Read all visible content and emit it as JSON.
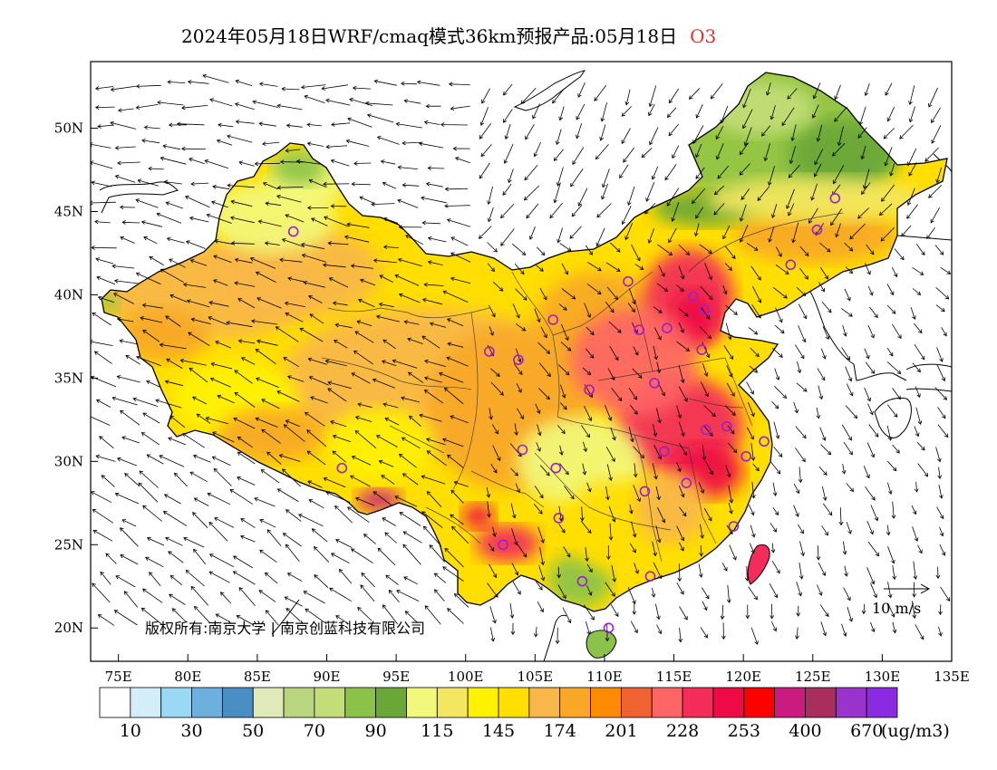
{
  "title": {
    "text": "2024年05月18日WRF/cmaq模式36km预报产品:05月18日",
    "species": "O3"
  },
  "map": {
    "projection": "lat-lon",
    "lon_range": [
      73,
      135
    ],
    "lat_range": [
      18,
      54
    ],
    "x_ticks": [
      "75E",
      "80E",
      "85E",
      "90E",
      "95E",
      "100E",
      "105E",
      "110E",
      "115E",
      "120E",
      "125E",
      "130E",
      "135E"
    ],
    "x_tick_values": [
      75,
      80,
      85,
      90,
      95,
      100,
      105,
      110,
      115,
      120,
      125,
      130,
      135
    ],
    "y_ticks": [
      "20N",
      "25N",
      "30N",
      "35N",
      "40N",
      "45N",
      "50N"
    ],
    "y_tick_values": [
      20,
      25,
      30,
      35,
      40,
      45,
      50
    ],
    "field": "O3 surface concentration (ug/m3) with 10 m wind vectors",
    "wind_reference": {
      "label": "10 m/s"
    },
    "copyright": "版权所有:南京大学 | 南京创蓝科技有限公司"
  },
  "stations": [
    [
      87.6,
      43.8
    ],
    [
      91.1,
      29.6
    ],
    [
      101.7,
      36.6
    ],
    [
      103.8,
      36.1
    ],
    [
      106.3,
      38.5
    ],
    [
      104.1,
      30.7
    ],
    [
      106.5,
      29.6
    ],
    [
      106.7,
      26.6
    ],
    [
      102.7,
      25.0
    ],
    [
      108.4,
      22.8
    ],
    [
      110.3,
      20.0
    ],
    [
      108.9,
      34.3
    ],
    [
      111.7,
      40.8
    ],
    [
      112.5,
      37.9
    ],
    [
      114.5,
      38.0
    ],
    [
      116.4,
      39.9
    ],
    [
      117.2,
      39.1
    ],
    [
      117.0,
      36.7
    ],
    [
      113.6,
      34.7
    ],
    [
      117.3,
      31.9
    ],
    [
      118.8,
      32.1
    ],
    [
      120.2,
      30.3
    ],
    [
      121.5,
      31.2
    ],
    [
      114.3,
      30.6
    ],
    [
      112.9,
      28.2
    ],
    [
      115.9,
      28.7
    ],
    [
      119.3,
      26.1
    ],
    [
      113.3,
      23.1
    ],
    [
      123.4,
      41.8
    ],
    [
      125.3,
      43.9
    ],
    [
      126.6,
      45.8
    ]
  ],
  "legend": {
    "colors": [
      "#ffffff",
      "#d4eef9",
      "#9ad8f3",
      "#6db0de",
      "#4a8fc4",
      "#dfeab8",
      "#b9d57f",
      "#c3de78",
      "#8bc34a",
      "#6aa739",
      "#f2f87a",
      "#f3e660",
      "#fff200",
      "#ffde00",
      "#f9b749",
      "#f8a826",
      "#ff8c00",
      "#f0622f",
      "#ff6565",
      "#f32c5a",
      "#ef0a45",
      "#ff0000",
      "#cc1b80",
      "#a72e5d",
      "#9933cc",
      "#8a2be2"
    ],
    "labels": [
      "10",
      "30",
      "50",
      "70",
      "90",
      "115",
      "145",
      "174",
      "201",
      "228",
      "253",
      "400",
      "670"
    ],
    "unit": "(ug/m3)"
  }
}
